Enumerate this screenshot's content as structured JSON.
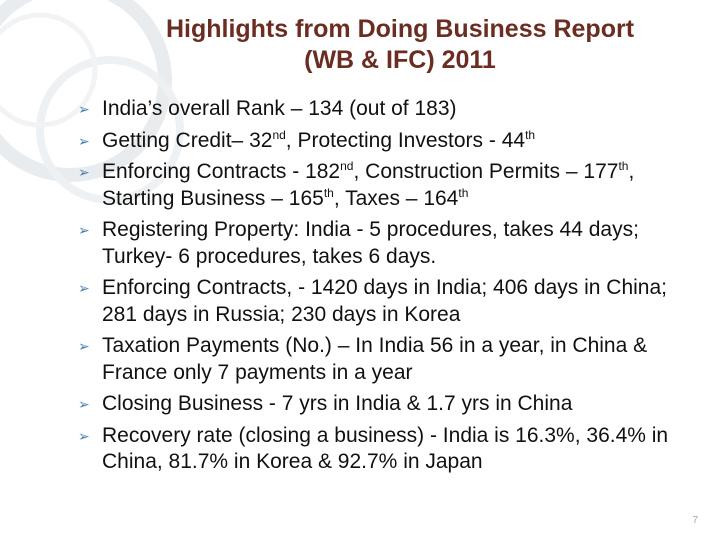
{
  "title": {
    "line1": "Highlights from Doing Business Report",
    "line2": "(WB & IFC) 2011"
  },
  "bullets": [
    {
      "parts": [
        "India’s overall Rank – 134 (out of 183)"
      ]
    },
    {
      "parts": [
        "Getting Credit– 32",
        "nd",
        ", Protecting Investors - 44",
        "th"
      ]
    },
    {
      "parts": [
        "Enforcing Contracts - 182",
        "nd",
        ", Construction Permits – 177",
        "th",
        ", Starting Business – 165",
        "th",
        ", Taxes – 164",
        "th"
      ]
    },
    {
      "parts": [
        "Registering Property: India - 5 procedures, takes 44 days; Turkey- 6 procedures, takes 6 days."
      ]
    },
    {
      "parts": [
        "Enforcing Contracts, - 1420 days in India; 406 days in China; 281 days in Russia; 230 days in Korea"
      ]
    },
    {
      "parts": [
        "Taxation Payments (No.) – In India 56 in a year, in China & France only 7 payments in a year"
      ]
    },
    {
      "parts": [
        "Closing Business - 7 yrs in India & 1.7 yrs in China"
      ]
    },
    {
      "parts": [
        "Recovery rate (closing a business) - India is 16.3%, 36.4% in China, 81.7% in Korea & 92.7% in Japan"
      ]
    }
  ],
  "bullet_icon": "arrow-bullet-icon",
  "page_number": "7",
  "colors": {
    "title": "#6b2d22",
    "bullet": "#4b7eaa",
    "text": "#111111"
  }
}
